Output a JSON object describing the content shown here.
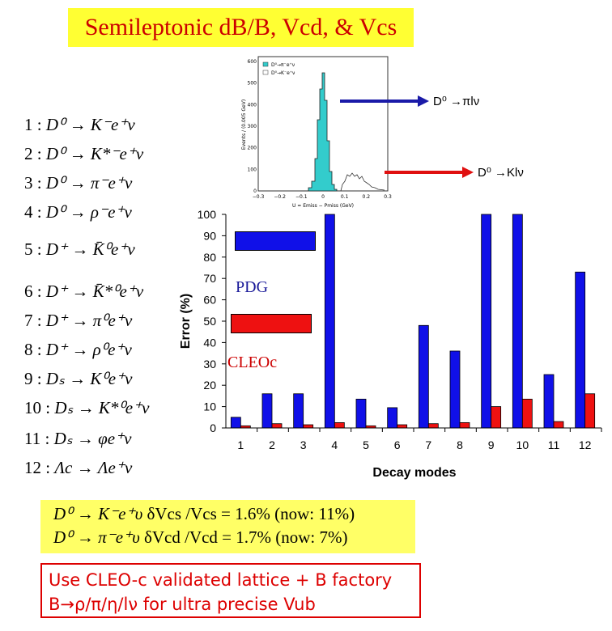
{
  "title": "Semileptonic dB/B, Vcd, & Vcs",
  "decay_list": [
    {
      "index": "1",
      "decay": "D⁰ → K⁻e⁺ν"
    },
    {
      "index": "2",
      "decay": "D⁰ → K*⁻e⁺ν"
    },
    {
      "index": "3",
      "decay": "D⁰ → π⁻e⁺ν"
    },
    {
      "index": "4",
      "decay": "D⁰ → ρ⁻e⁺ν"
    },
    {
      "index": "5",
      "decay": "D⁺ → K̄⁰e⁺ν"
    },
    {
      "index": "6",
      "decay": "D⁺ → K̄*⁰e⁺ν"
    },
    {
      "index": "7",
      "decay": "D⁺ → π⁰e⁺ν"
    },
    {
      "index": "8",
      "decay": "D⁺ → ρ⁰e⁺ν"
    },
    {
      "index": "9",
      "decay": "Dₛ → K⁰e⁺ν"
    },
    {
      "index": "10",
      "decay": "Dₛ → K*⁰e⁺ν"
    },
    {
      "index": "11",
      "decay": "Dₛ → φe⁺ν"
    },
    {
      "index": "12",
      "decay": "Λc → Λe⁺ν"
    }
  ],
  "inset": {
    "legend": [
      "D⁰→π⁻e⁺ν",
      "D⁰→K⁻e⁺ν"
    ],
    "ylabel": "Events / (0.005 GeV)",
    "xlabel": "U = Emiss − Pmiss (GeV)",
    "xticks": [
      "−0.3",
      "−0.2",
      "−0.1",
      "0",
      "0.1",
      "0.2",
      "0.3"
    ],
    "yticks": [
      "0",
      "100",
      "200",
      "300",
      "400",
      "500",
      "600"
    ]
  },
  "arrows": {
    "pi_label": "D⁰ →πlν",
    "k_label": "D⁰ →Klν",
    "pi_color": "#1a1aa8",
    "k_color": "#e01010"
  },
  "legend": {
    "pdg_label": "PDG",
    "cleoc_label": "CLEOc",
    "pdg_color": "#1010e8",
    "cleoc_color": "#ee1111"
  },
  "chart_data": {
    "type": "bar",
    "title": "",
    "xlabel": "Decay modes",
    "ylabel": "Error (%)",
    "ylim": [
      0,
      100
    ],
    "categories": [
      "1",
      "2",
      "3",
      "4",
      "5",
      "6",
      "7",
      "8",
      "9",
      "10",
      "11",
      "12"
    ],
    "yticks": [
      "0",
      "10",
      "20",
      "30",
      "40",
      "50",
      "60",
      "70",
      "80",
      "90",
      "100"
    ],
    "series": [
      {
        "name": "PDG",
        "color": "#1010e8",
        "values": [
          5,
          16,
          16,
          100,
          13.5,
          9.5,
          48,
          36,
          100,
          100,
          25,
          73
        ]
      },
      {
        "name": "CLEOc",
        "color": "#ee1111",
        "values": [
          1,
          2,
          1.5,
          2.5,
          1,
          1.5,
          2,
          2.5,
          10,
          13.5,
          3,
          16
        ]
      }
    ]
  },
  "summary": {
    "line1_decay": "D⁰ → K⁻e⁺υ",
    "line1_text": "δVcs /Vcs = 1.6%  (now: 11%)",
    "line2_decay": "D⁰ → π⁻e⁺υ",
    "line2_text": "δVcd /Vcd = 1.7%  (now: 7%)"
  },
  "note": {
    "line1": "Use CLEO-c validated lattice + B factory",
    "line2": "B→ρ/π/η/lν  for ultra precise Vub"
  }
}
